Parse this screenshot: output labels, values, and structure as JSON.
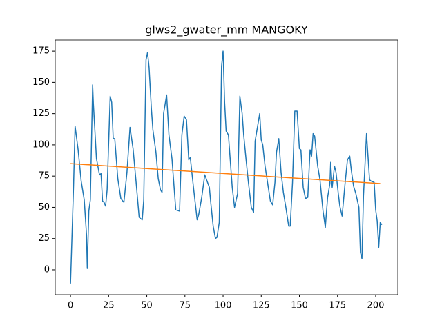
{
  "chart_data": {
    "type": "line",
    "title": "glws2_gwater_mm MANGOKY",
    "xlim": [
      -10,
      214.5
    ],
    "ylim": [
      -19.9,
      183.9
    ],
    "xticks": [
      0,
      25,
      50,
      75,
      100,
      125,
      150,
      175,
      200
    ],
    "yticks": [
      0,
      25,
      50,
      75,
      100,
      125,
      150,
      175
    ],
    "series": [
      {
        "color": "#1f77b4",
        "x": [
          0,
          2,
          3,
          5,
          7,
          9,
          10.5,
          11,
          12,
          13,
          14.5,
          15,
          17,
          19,
          20,
          21,
          22,
          23,
          24,
          26,
          27,
          28,
          29,
          31,
          33,
          35,
          37,
          39,
          41,
          43,
          45,
          47,
          48,
          49.5,
          50.5,
          51.5,
          53,
          54,
          56,
          57.5,
          59,
          60,
          61,
          63,
          64.5,
          66.5,
          69,
          71.5,
          73,
          74.5,
          76,
          77.5,
          78.5,
          80.5,
          83,
          84,
          86,
          88,
          91,
          92,
          93.5,
          95,
          96,
          97.5,
          99,
          100,
          101,
          102,
          103.5,
          106,
          107.5,
          109.5,
          111,
          112.5,
          113.5,
          115,
          116.5,
          118.5,
          120,
          121,
          124,
          125,
          126,
          127.5,
          130,
          131,
          132.5,
          134,
          135,
          136.5,
          138,
          139.5,
          141,
          143,
          144,
          145.5,
          147,
          148.5,
          150,
          151,
          152.5,
          154,
          155.5,
          157,
          158,
          159,
          160,
          162,
          163.5,
          165,
          165.5,
          167,
          168.5,
          170,
          170.5,
          171.5,
          173,
          174,
          175.5,
          176.5,
          178,
          180,
          181.5,
          183,
          184,
          185.5,
          187,
          189,
          190,
          191,
          192,
          194,
          196,
          197,
          199,
          200,
          201,
          202,
          203,
          204
        ],
        "values": [
          -11,
          67,
          115,
          96,
          71,
          56,
          28,
          1,
          47,
          56,
          148,
          133,
          89,
          76,
          77,
          55,
          54,
          51,
          64,
          139,
          134,
          105,
          105,
          73,
          57,
          54,
          78,
          114,
          97,
          70,
          42,
          40,
          56,
          168,
          174,
          162,
          129,
          112,
          94,
          73,
          64,
          62,
          125,
          140,
          108,
          89,
          48,
          47,
          108,
          123,
          120,
          88,
          90,
          67,
          40,
          44,
          58,
          76,
          66,
          53,
          35,
          25,
          26,
          38,
          163,
          175,
          134,
          111,
          108,
          66,
          50,
          61,
          139,
          125,
          108,
          89,
          71,
          50,
          46,
          103,
          125,
          104,
          100,
          83,
          63,
          55,
          52,
          70,
          94,
          105,
          78,
          62,
          51,
          35,
          35,
          70,
          127,
          127,
          97,
          96,
          66,
          57,
          58,
          96,
          91,
          109,
          107,
          83,
          72,
          53,
          47,
          34,
          58,
          69,
          86,
          66,
          83,
          78,
          61,
          51,
          43,
          70,
          88,
          91,
          80,
          67,
          61,
          50,
          14,
          9,
          59,
          109,
          72,
          71,
          70,
          48,
          39,
          18,
          38,
          36
        ]
      },
      {
        "color": "#ff7f0e",
        "x": [
          0,
          203
        ],
        "values": [
          85,
          69
        ]
      }
    ]
  }
}
